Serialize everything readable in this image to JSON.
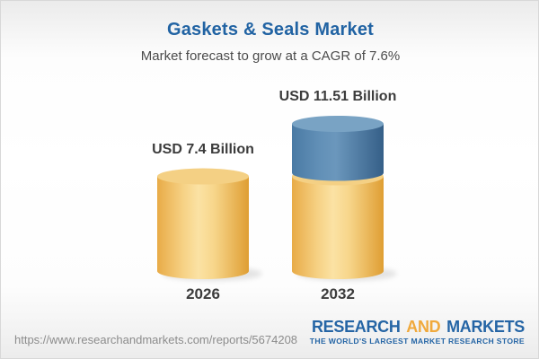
{
  "header": {
    "title": "Gaskets & Seals Market",
    "subtitle": "Market forecast to grow at a CAGR of 7.6%"
  },
  "chart_data": {
    "type": "bar",
    "subtype": "3d-cylinder-stacked",
    "title": "Gaskets & Seals Market",
    "subtitle": "Market forecast to grow at a CAGR of 7.6%",
    "unit": "USD Billion",
    "cagr_percent": 7.6,
    "categories": [
      "2026",
      "2032"
    ],
    "values": [
      7.4,
      11.51
    ],
    "value_labels": [
      "USD 7.4 Billion",
      "USD 11.51 Billion"
    ],
    "growth_segment": {
      "applies_to": "2032",
      "from": 7.4,
      "to": 11.51
    },
    "colors": {
      "base_fill": "#f3c974",
      "base_top": "#f4d084",
      "growth_fill": "#4d7ea8",
      "growth_top": "#79a3c4",
      "label_text": "#3c3c3c"
    },
    "legend": "none",
    "axes": "none"
  },
  "footer": {
    "url": "https://www.researchandmarkets.com/reports/5674208",
    "logo": {
      "line1_part1": "RESEARCH",
      "line1_part2": "AND",
      "line1_part3": "MARKETS",
      "tagline": "THE WORLD'S LARGEST MARKET RESEARCH STORE",
      "blue": "#2565a5",
      "orange": "#f0a93c"
    }
  },
  "theme": {
    "title_color": "#2163a3",
    "subtitle_color": "#4b4b4b",
    "url_color": "#8c8c8c",
    "background_top": "#ebebeb",
    "background_middle": "#ffffff",
    "background_bottom": "#ececec",
    "border_color": "#d8d8d8"
  }
}
